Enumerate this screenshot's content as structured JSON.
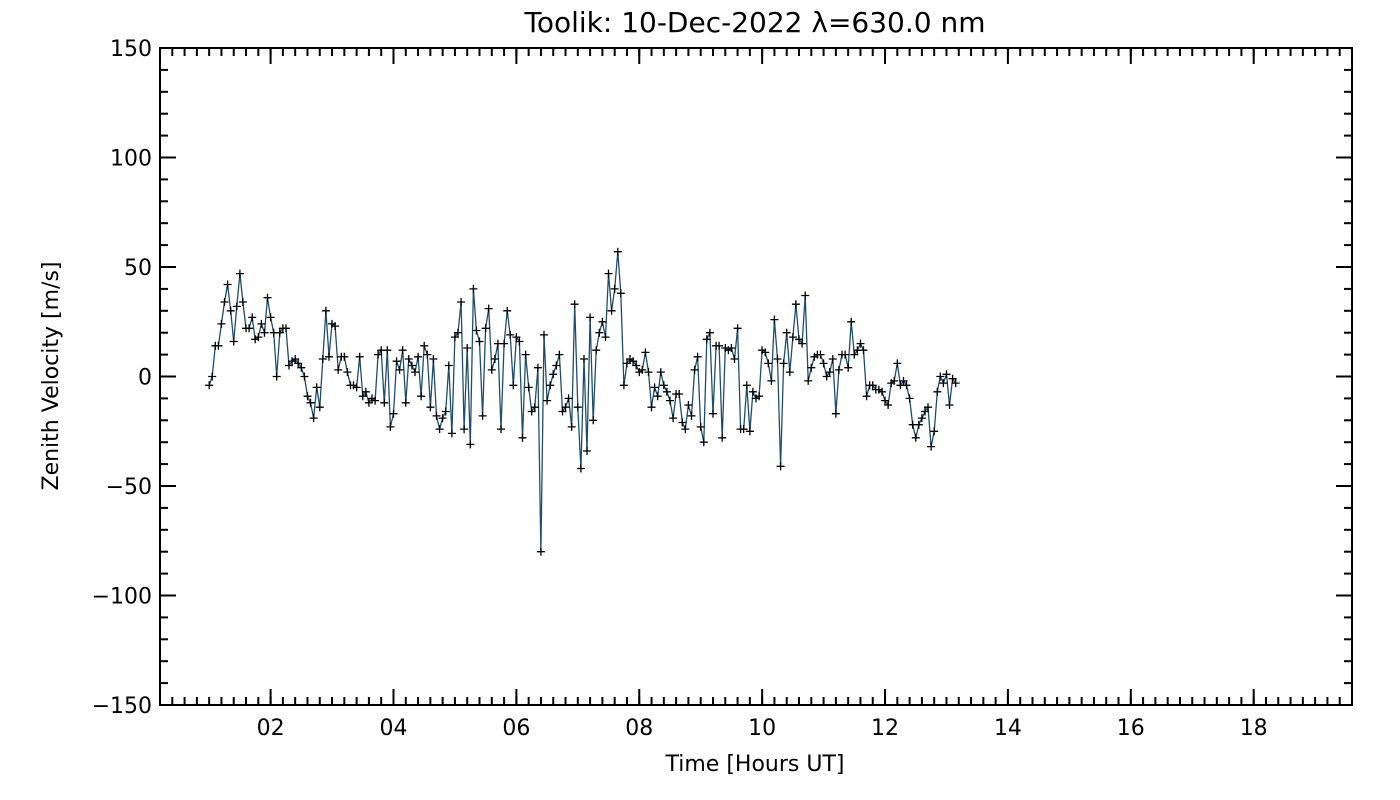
{
  "chart_data": {
    "type": "line",
    "title": "Toolik: 10-Dec-2022 λ=630.0 nm",
    "xlabel": "Time [Hours UT]",
    "ylabel": "Zenith Velocity [m/s]",
    "xlim": [
      0.2,
      19.6
    ],
    "ylim": [
      -150,
      150
    ],
    "x_major_ticks": [
      2,
      4,
      6,
      8,
      10,
      12,
      14,
      16,
      18
    ],
    "x_tick_labels": [
      "02",
      "04",
      "06",
      "08",
      "10",
      "12",
      "14",
      "16",
      "18"
    ],
    "x_minor_step": 0.2,
    "y_major_ticks": [
      -150,
      -100,
      -50,
      0,
      50,
      100,
      150
    ],
    "y_tick_labels": [
      "−150",
      "−100",
      "−50",
      "0",
      "50",
      "100",
      "150"
    ],
    "y_minor_step": 10,
    "line_color": "#1f4e6b",
    "marker_color": "#000000",
    "series": [
      {
        "name": "Zenith Velocity",
        "x_start": 1.0,
        "x_step": 0.05,
        "values": [
          -4,
          0,
          14,
          14,
          24,
          34,
          42,
          30,
          16,
          32,
          47,
          34,
          22,
          22,
          27,
          17,
          18,
          24,
          20,
          36,
          27,
          20,
          0,
          20,
          22,
          22,
          5,
          7,
          8,
          6,
          4,
          0,
          -9,
          -12,
          -19,
          -5,
          -14,
          8,
          30,
          9,
          24,
          23,
          3,
          9,
          9,
          2,
          -4,
          -4,
          -5,
          9,
          -9,
          -7,
          -12,
          -10,
          -11,
          10,
          12,
          -12,
          12,
          -23,
          -17,
          7,
          3,
          12,
          -12,
          8,
          5,
          2,
          9,
          -9,
          14,
          10,
          -14,
          8,
          -18,
          -24,
          -19,
          -16,
          5,
          -26,
          18,
          20,
          34,
          -24,
          13,
          -31,
          40,
          21,
          16,
          -18,
          22,
          31,
          3,
          8,
          15,
          -24,
          15,
          30,
          19,
          -4,
          18,
          16,
          -28,
          10,
          -5,
          -16,
          -14,
          4,
          -80,
          19,
          -11,
          -4,
          1,
          5,
          10,
          -16,
          -14,
          -10,
          -23,
          33,
          -14,
          -42,
          8,
          -34,
          27,
          -20,
          12,
          20,
          25,
          18,
          47,
          30,
          40,
          57,
          38,
          -4,
          6,
          8,
          7,
          5,
          2,
          3,
          11,
          2,
          -14,
          -5,
          -9,
          2,
          -4,
          -7,
          -11,
          -19,
          -8,
          -8,
          -21,
          -24,
          -13,
          -18,
          3,
          9,
          -23,
          -30,
          17,
          20,
          -17,
          14,
          14,
          -28,
          13,
          12,
          13,
          8,
          22,
          -24,
          -24,
          -4,
          -25,
          -7,
          -10,
          -9,
          12,
          11,
          6,
          -2,
          26,
          8,
          -41,
          6,
          20,
          2,
          18,
          33,
          17,
          15,
          37,
          -2,
          4,
          9,
          10,
          10,
          6,
          0,
          2,
          8,
          -17,
          3,
          10,
          10,
          4,
          25,
          10,
          12,
          15,
          12,
          -9,
          -4,
          -4,
          -6,
          -6,
          -7,
          -11,
          -13,
          -3,
          -2,
          6,
          -4,
          -2,
          -4,
          -10,
          -22,
          -28,
          -22,
          -19,
          -16,
          -14,
          -32,
          -25,
          -7,
          0,
          -3,
          1,
          -13,
          -1,
          -3
        ]
      }
    ]
  }
}
